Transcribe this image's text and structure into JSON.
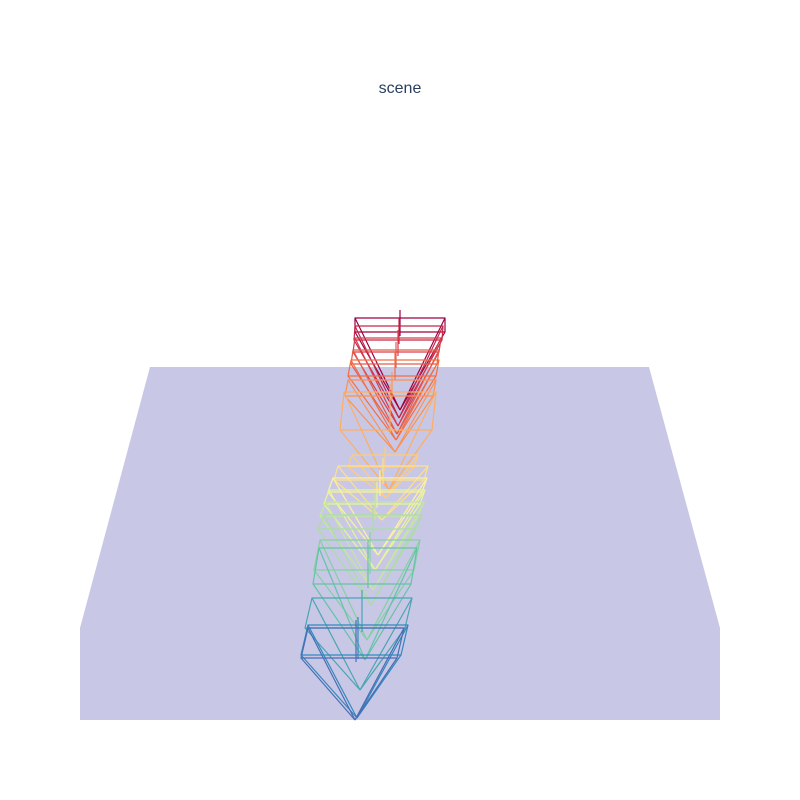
{
  "title": "scene",
  "colors": {
    "ground": "#c8c8e6",
    "title": "#2a3f5f"
  },
  "cameras": [
    {
      "id": 1,
      "color": "#9e0142"
    },
    {
      "id": 2,
      "color": "#c2294a"
    },
    {
      "id": 3,
      "color": "#d53e4f"
    },
    {
      "id": 4,
      "color": "#e45c4a"
    },
    {
      "id": 5,
      "color": "#f46d43"
    },
    {
      "id": 6,
      "color": "#f99254"
    },
    {
      "id": 7,
      "color": "#fdae61"
    },
    {
      "id": 8,
      "color": "#fecb7a"
    },
    {
      "id": 9,
      "color": "#fee08b"
    },
    {
      "id": 10,
      "color": "#fff0a0"
    },
    {
      "id": 11,
      "color": "#e6f598"
    },
    {
      "id": 12,
      "color": "#c4e79e"
    },
    {
      "id": 13,
      "color": "#abdda4"
    },
    {
      "id": 14,
      "color": "#86cfa5"
    },
    {
      "id": 15,
      "color": "#66c2a5"
    },
    {
      "id": 16,
      "color": "#4aa4b2"
    },
    {
      "id": 17,
      "color": "#3288bd"
    },
    {
      "id": 18,
      "color": "#4b6cb3"
    }
  ]
}
